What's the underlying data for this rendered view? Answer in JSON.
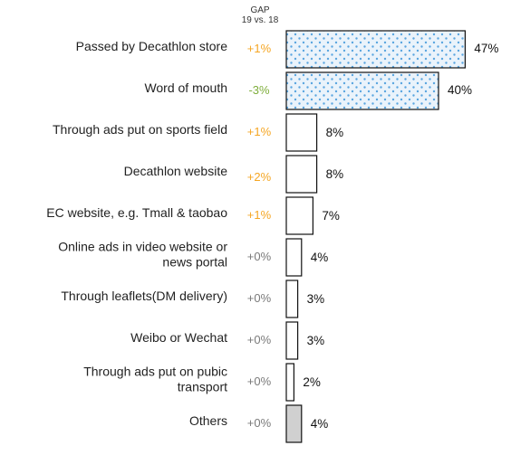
{
  "header": {
    "gap_title": "GAP",
    "gap_subtitle": "19 vs. 18"
  },
  "colors": {
    "gap_positive": "#f5a623",
    "gap_negative": "#7fae3c",
    "gap_neutral": "#7a7a7a",
    "pattern_dots": "#5aa6e0",
    "pattern_fill": "#eaf3fb",
    "others_fill": "#d0d0d0",
    "bar_outline": "#111111"
  },
  "chart_data": {
    "type": "bar",
    "orientation": "horizontal",
    "categories": [
      [
        "Passed by Decathlon store"
      ],
      [
        "Word of mouth"
      ],
      [
        "Through ads put on sports field"
      ],
      [
        "Decathlon website"
      ],
      [
        "EC website, e.g. Tmall & taobao"
      ],
      [
        "Online ads in video website or",
        "news portal"
      ],
      [
        "Through leaflets(DM delivery)"
      ],
      [
        "Weibo or Wechat"
      ],
      [
        "Through ads put on pubic",
        "transport"
      ],
      [
        "Others"
      ]
    ],
    "values": [
      47,
      40,
      8,
      8,
      7,
      4,
      3,
      3,
      2,
      4
    ],
    "value_labels": [
      "47%",
      "40%",
      "8%",
      "8%",
      "7%",
      "4%",
      "3%",
      "3%",
      "2%",
      "4%"
    ],
    "gap": [
      "+1%",
      "-3%",
      "+1%",
      "+2%",
      "+1%",
      "+0%",
      "+0%",
      "+0%",
      "+0%",
      "+0%"
    ],
    "bar_style": [
      "dotted",
      "dotted",
      "plain",
      "plain",
      "plain",
      "plain",
      "plain",
      "plain",
      "plain",
      "grey"
    ],
    "unit": "%"
  }
}
